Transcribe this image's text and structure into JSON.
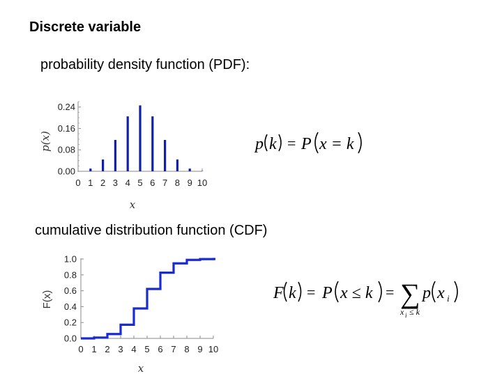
{
  "heading": "Discrete variable",
  "pdf_section": {
    "label": "probability density function (PDF):"
  },
  "cdf_section": {
    "label": "cumulative distribution function (CDF)"
  },
  "formulas": {
    "pdf_lhs": "p",
    "pdf_arg": "k",
    "pdf_eq": "=",
    "pdf_P": "P",
    "pdf_inner": "x = k",
    "cdf_lhs": "F",
    "cdf_arg": "k",
    "cdf_eq": "=",
    "cdf_P": "P",
    "cdf_inner": "x ≤ k",
    "cdf_eq2": "=",
    "cdf_sum": "∑",
    "cdf_sum_sub": "x",
    "cdf_sum_sub_i": "i",
    "cdf_sum_sub_rest": "≤ k",
    "cdf_term": "p",
    "cdf_term_arg": "x",
    "cdf_term_sub": "i"
  },
  "chart_data": [
    {
      "type": "bar",
      "xlabel": "x",
      "ylabel": "p(x)",
      "categories": [
        0,
        1,
        2,
        3,
        4,
        5,
        6,
        7,
        8,
        9,
        10
      ],
      "values": [
        0.0,
        0.01,
        0.044,
        0.117,
        0.205,
        0.246,
        0.205,
        0.117,
        0.044,
        0.01,
        0.001
      ],
      "yticks": [
        "0.00",
        "0.08",
        "0.16",
        "0.24"
      ],
      "ytick_values": [
        0.0,
        0.08,
        0.16,
        0.24
      ],
      "ylim": [
        0,
        0.26
      ],
      "xlim": [
        0,
        10
      ],
      "color": "#0f1fb0"
    },
    {
      "type": "line",
      "step": true,
      "xlabel": "x",
      "ylabel": "F(x)",
      "x": [
        0,
        1,
        2,
        3,
        4,
        5,
        6,
        7,
        8,
        9,
        10
      ],
      "values": [
        0.0,
        0.01,
        0.055,
        0.172,
        0.377,
        0.623,
        0.828,
        0.945,
        0.989,
        0.999,
        1.0
      ],
      "yticks": [
        "0.0",
        "0.2",
        "0.4",
        "0.6",
        "0.8",
        "1.0"
      ],
      "ytick_values": [
        0.0,
        0.2,
        0.4,
        0.6,
        0.8,
        1.0
      ],
      "ylim": [
        0,
        1.0
      ],
      "xlim": [
        0,
        10
      ],
      "color": "#1a2bd0"
    }
  ]
}
